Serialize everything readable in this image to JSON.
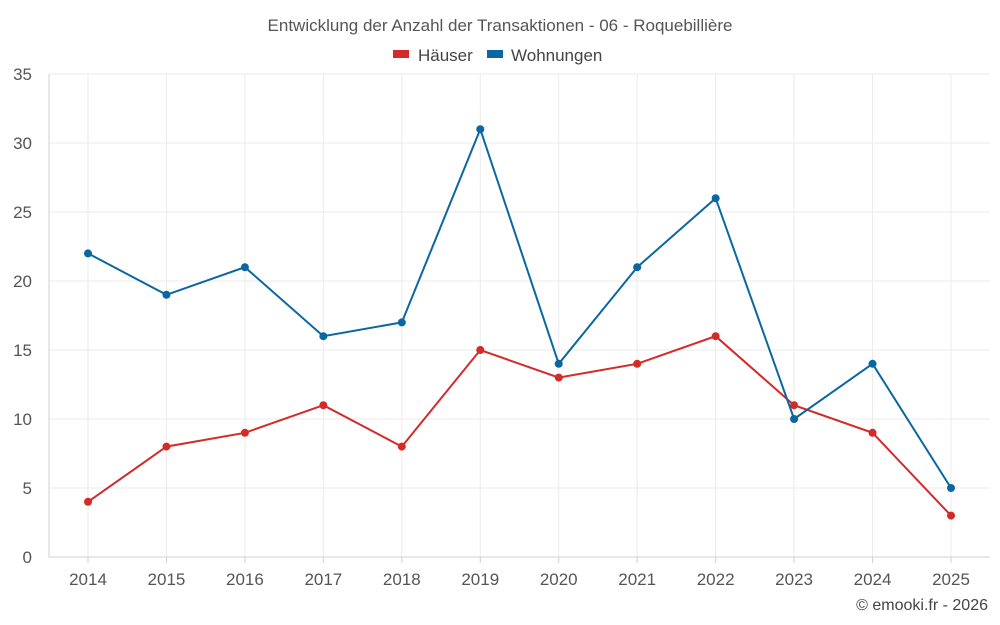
{
  "chart_data": {
    "type": "line",
    "title": "Entwicklung der Anzahl der Transaktionen - 06 - Roquebillière",
    "categories": [
      "2014",
      "2015",
      "2016",
      "2017",
      "2018",
      "2019",
      "2020",
      "2021",
      "2022",
      "2023",
      "2024",
      "2025"
    ],
    "series": [
      {
        "name": "Häuser",
        "color": "#d32a2a",
        "values": [
          4,
          8,
          9,
          11,
          8,
          15,
          13,
          14,
          16,
          11,
          9,
          3
        ]
      },
      {
        "name": "Wohnungen",
        "color": "#0a67a0",
        "values": [
          22,
          19,
          21,
          16,
          17,
          31,
          14,
          21,
          26,
          10,
          14,
          5
        ]
      }
    ],
    "ylim": [
      0,
      35
    ],
    "yticks": [
      0,
      5,
      10,
      15,
      20,
      25,
      30,
      35
    ],
    "xlabel": "",
    "ylabel": "",
    "grid": true,
    "legend": "top-center"
  },
  "credit": "© emooki.fr - 2026"
}
